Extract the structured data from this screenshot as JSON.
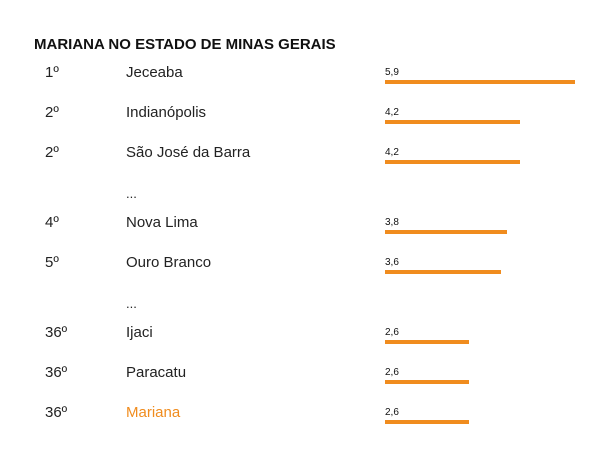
{
  "chart_data": {
    "type": "bar",
    "orientation": "horizontal",
    "title": "MARIANA NO ESTADO DE MINAS GERAIS",
    "xlim": [
      0,
      5.9
    ],
    "colors": {
      "bar": "#f08c1e",
      "highlight_text": "#f08c1e",
      "text": "#222222"
    },
    "highlighted": "Mariana",
    "ellipsis": "...",
    "rows": [
      {
        "rank": "1º",
        "name": "Jeceaba",
        "value": 5.9,
        "label": "5,9"
      },
      {
        "rank": "2º",
        "name": "Indianópolis",
        "value": 4.2,
        "label": "4,2"
      },
      {
        "rank": "2º",
        "name": "São José da Barra",
        "value": 4.2,
        "label": "4,2"
      },
      {
        "rank": "4º",
        "name": "Nova Lima",
        "value": 3.8,
        "label": "3,8"
      },
      {
        "rank": "5º",
        "name": "Ouro Branco",
        "value": 3.6,
        "label": "3,6"
      },
      {
        "rank": "36º",
        "name": "Ijaci",
        "value": 2.6,
        "label": "2,6"
      },
      {
        "rank": "36º",
        "name": "Paracatu",
        "value": 2.6,
        "label": "2,6"
      },
      {
        "rank": "36º",
        "name": "Mariana",
        "value": 2.6,
        "label": "2,6"
      }
    ]
  }
}
